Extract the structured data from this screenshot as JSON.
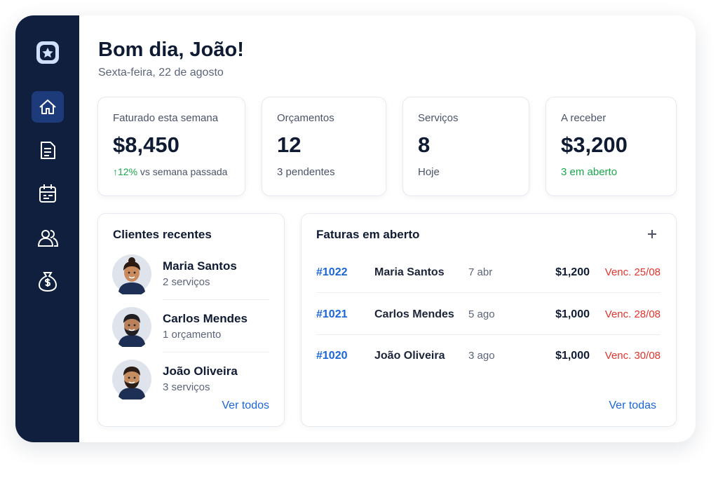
{
  "header": {
    "greeting": "Bom dia, João!",
    "date": "Sexta-feira, 22 de agosto"
  },
  "stats": [
    {
      "label": "Faturado esta semana",
      "value": "$8,450",
      "highlight": "↑12%",
      "note": "vs semana passada"
    },
    {
      "label": "Orçamentos",
      "value": "12",
      "note": "3 pendentes"
    },
    {
      "label": "Serviços",
      "value": "8",
      "note": "Hoje"
    },
    {
      "label": "A receber",
      "value": "$3,200",
      "highlight": "3 em aberto"
    }
  ],
  "clients": {
    "title": "Clientes recentes",
    "items": [
      {
        "name": "Maria Santos",
        "detail": "2 serviços"
      },
      {
        "name": "Carlos Mendes",
        "detail": "1 orçamento"
      },
      {
        "name": "João Oliveira",
        "detail": "3 serviços"
      }
    ],
    "link": "Ver todos"
  },
  "invoices": {
    "title": "Faturas em aberto",
    "rows": [
      {
        "id": "#1022",
        "client": "Maria Santos",
        "date": "7 abr",
        "amount": "$1,200",
        "due": "Venc. 25/08"
      },
      {
        "id": "#1021",
        "client": "Carlos Mendes",
        "date": "5 ago",
        "amount": "$1,000",
        "due": "Venc. 28/08"
      },
      {
        "id": "#1020",
        "client": "João Oliveira",
        "date": "3 ago",
        "amount": "$1,000",
        "due": "Venc. 30/08"
      }
    ],
    "link": "Ver todas"
  }
}
